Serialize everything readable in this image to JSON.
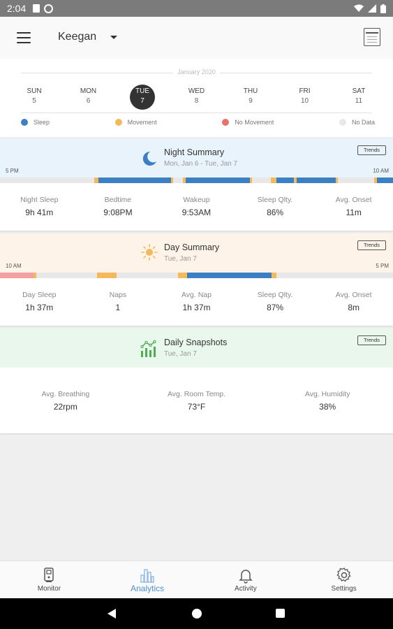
{
  "status_bar": {
    "time": "2:04"
  },
  "app_bar": {
    "user_name": "Keegan"
  },
  "week": {
    "month_label": "January 2020",
    "days": [
      {
        "name": "SUN",
        "num": "5"
      },
      {
        "name": "MON",
        "num": "6"
      },
      {
        "name": "TUE",
        "num": "7"
      },
      {
        "name": "WED",
        "num": "8"
      },
      {
        "name": "THU",
        "num": "9"
      },
      {
        "name": "FRI",
        "num": "10"
      },
      {
        "name": "SAT",
        "num": "11"
      }
    ],
    "selected_index": 2
  },
  "legend": [
    {
      "label": "Sleep",
      "color": "#3b7fc4"
    },
    {
      "label": "Movement",
      "color": "#f5b95c"
    },
    {
      "label": "No Movement",
      "color": "#ea6f6f"
    },
    {
      "label": "No Data",
      "color": "#e8e8e8"
    }
  ],
  "night_summary": {
    "title": "Night Summary",
    "subtitle": "Mon, Jan 6 - Tue, Jan 7",
    "trends_label": "Trends",
    "time_start": "5 PM",
    "time_end": "10 AM",
    "bg_color": "#e9f3fc",
    "stats": [
      {
        "label": "Night Sleep",
        "value": "9h 41m"
      },
      {
        "label": "Bedtime",
        "value": "9:08PM"
      },
      {
        "label": "Wakeup",
        "value": "9:53AM"
      },
      {
        "label": "Sleep Qlty.",
        "value": "86%"
      },
      {
        "label": "Avg. Onset",
        "value": "11m"
      }
    ]
  },
  "day_summary": {
    "title": "Day Summary",
    "subtitle": "Tue, Jan 7",
    "trends_label": "Trends",
    "time_start": "10 AM",
    "time_end": "5 PM",
    "bg_color": "#fdf3e8",
    "stats": [
      {
        "label": "Day Sleep",
        "value": "1h 37m"
      },
      {
        "label": "Naps",
        "value": "1"
      },
      {
        "label": "Avg. Nap",
        "value": "1h 37m"
      },
      {
        "label": "Sleep Qlty.",
        "value": "87%"
      },
      {
        "label": "Avg. Onset",
        "value": "8m"
      }
    ]
  },
  "daily_snapshots": {
    "title": "Daily Snapshots",
    "subtitle": "Tue, Jan 7",
    "trends_label": "Trends",
    "bg_color": "#eaf7ec",
    "stats": [
      {
        "label": "Avg. Breathing",
        "value": "22rpm"
      },
      {
        "label": "Avg. Room Temp.",
        "value": "73°F"
      },
      {
        "label": "Avg. Humidity",
        "value": "38%"
      }
    ]
  },
  "bottom_nav": {
    "items": [
      {
        "label": "Monitor",
        "icon": "monitor-icon"
      },
      {
        "label": "Analytics",
        "icon": "analytics-icon"
      },
      {
        "label": "Activity",
        "icon": "bell-icon"
      },
      {
        "label": "Settings",
        "icon": "gear-icon"
      }
    ],
    "active_index": 1
  }
}
